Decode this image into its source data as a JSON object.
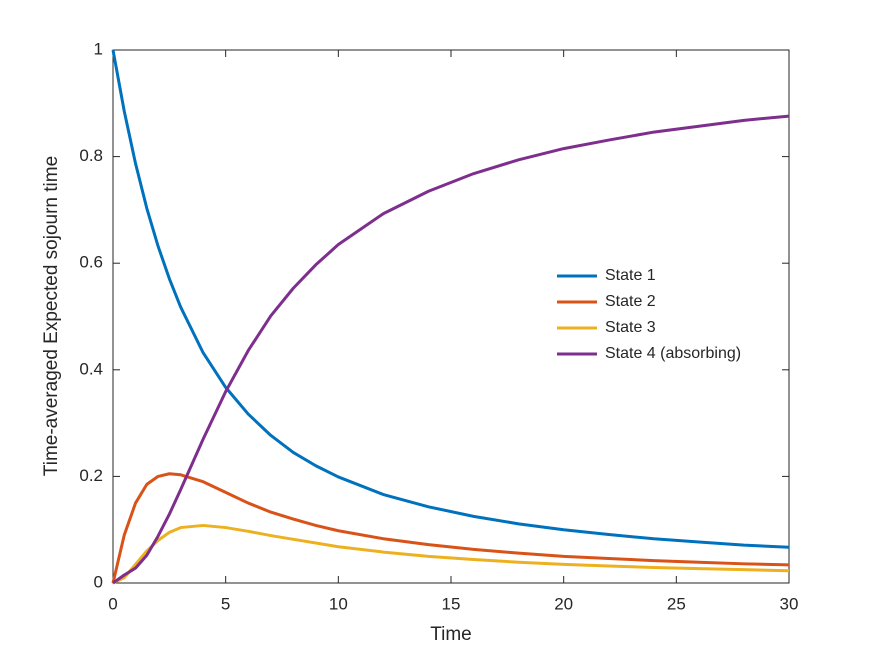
{
  "chart_data": {
    "type": "line",
    "xlabel": "Time",
    "ylabel": "Time-averaged Expected sojourn time",
    "x": [
      0,
      0.5,
      1,
      1.5,
      2,
      2.5,
      3,
      4,
      5,
      6,
      7,
      8,
      9,
      10,
      12,
      14,
      16,
      18,
      20,
      22,
      24,
      26,
      28,
      30
    ],
    "series": [
      {
        "name": "State 1",
        "color": "#0072bd",
        "values": [
          1,
          0.885,
          0.787,
          0.703,
          0.632,
          0.571,
          0.518,
          0.432,
          0.367,
          0.317,
          0.277,
          0.245,
          0.22,
          0.199,
          0.166,
          0.143,
          0.125,
          0.111,
          0.1,
          0.091,
          0.083,
          0.077,
          0.071,
          0.067
        ]
      },
      {
        "name": "State 2",
        "color": "#d95319",
        "values": [
          0,
          0.09,
          0.15,
          0.185,
          0.2,
          0.205,
          0.203,
          0.19,
          0.17,
          0.15,
          0.133,
          0.12,
          0.108,
          0.098,
          0.083,
          0.072,
          0.063,
          0.056,
          0.05,
          0.046,
          0.042,
          0.039,
          0.036,
          0.034
        ]
      },
      {
        "name": "State 3",
        "color": "#edb120",
        "values": [
          0,
          0.01,
          0.035,
          0.06,
          0.08,
          0.095,
          0.104,
          0.108,
          0.104,
          0.097,
          0.089,
          0.082,
          0.075,
          0.068,
          0.058,
          0.05,
          0.044,
          0.039,
          0.035,
          0.032,
          0.029,
          0.027,
          0.025,
          0.023
        ]
      },
      {
        "name": "State 4 (absorbing)",
        "color": "#7e2f8e",
        "values": [
          0,
          0.015,
          0.028,
          0.052,
          0.088,
          0.129,
          0.175,
          0.27,
          0.359,
          0.436,
          0.501,
          0.553,
          0.597,
          0.635,
          0.693,
          0.735,
          0.768,
          0.794,
          0.815,
          0.831,
          0.846,
          0.857,
          0.868,
          0.876
        ]
      }
    ],
    "xlim": [
      0,
      30
    ],
    "xticks": [
      0,
      5,
      10,
      15,
      20,
      25,
      30
    ],
    "ylim": [
      0,
      1
    ],
    "yticks": [
      0,
      0.2,
      0.4,
      0.6,
      0.8,
      1
    ],
    "grid": false,
    "legend": "east"
  }
}
